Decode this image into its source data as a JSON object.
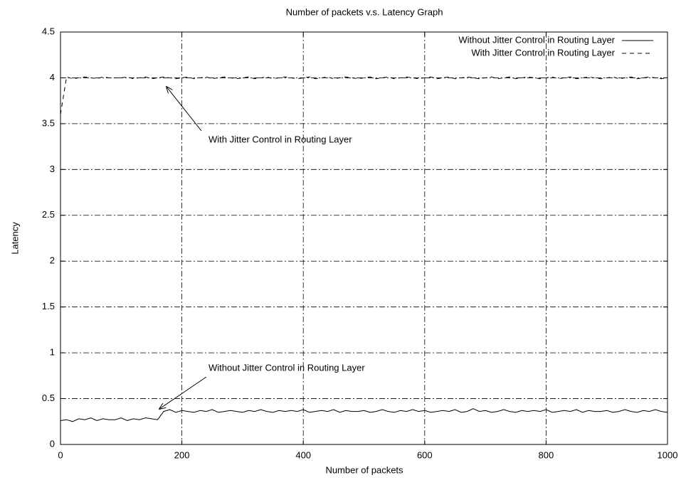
{
  "chart_data": {
    "type": "line",
    "title": "Number of packets v.s. Latency Graph",
    "x_label": "Number of packets",
    "y_label": "Latency",
    "xlim": [
      0,
      1000
    ],
    "ylim": [
      0,
      4.5
    ],
    "xticks": [
      0,
      200,
      400,
      600,
      800,
      1000
    ],
    "yticks": [
      0,
      0.5,
      1,
      1.5,
      2,
      2.5,
      3,
      3.5,
      4,
      4.5
    ],
    "grid": true,
    "legend": "top-right",
    "x": [
      0,
      10,
      20,
      30,
      40,
      50,
      60,
      70,
      80,
      90,
      100,
      110,
      120,
      130,
      140,
      150,
      160,
      170,
      180,
      190,
      200,
      210,
      220,
      230,
      240,
      250,
      260,
      270,
      280,
      290,
      300,
      310,
      320,
      330,
      340,
      350,
      360,
      370,
      380,
      390,
      400,
      410,
      420,
      430,
      440,
      450,
      460,
      470,
      480,
      490,
      500,
      510,
      520,
      530,
      540,
      550,
      560,
      570,
      580,
      590,
      600,
      610,
      620,
      630,
      640,
      650,
      660,
      670,
      680,
      690,
      700,
      710,
      720,
      730,
      740,
      750,
      760,
      770,
      780,
      790,
      800,
      810,
      820,
      830,
      840,
      850,
      860,
      870,
      880,
      890,
      900,
      910,
      920,
      930,
      940,
      950,
      960,
      970,
      980,
      990,
      1000
    ],
    "series": [
      {
        "name": "Without Jitter Control in Routing Layer",
        "color": "#000000",
        "style": "solid",
        "values": [
          0.26,
          0.27,
          0.25,
          0.28,
          0.27,
          0.29,
          0.26,
          0.28,
          0.27,
          0.27,
          0.29,
          0.26,
          0.28,
          0.27,
          0.29,
          0.28,
          0.27,
          0.36,
          0.38,
          0.35,
          0.37,
          0.36,
          0.35,
          0.37,
          0.36,
          0.38,
          0.35,
          0.36,
          0.37,
          0.36,
          0.35,
          0.37,
          0.36,
          0.38,
          0.36,
          0.35,
          0.37,
          0.36,
          0.37,
          0.36,
          0.38,
          0.35,
          0.36,
          0.37,
          0.36,
          0.38,
          0.35,
          0.37,
          0.36,
          0.36,
          0.37,
          0.35,
          0.36,
          0.38,
          0.36,
          0.35,
          0.37,
          0.36,
          0.38,
          0.36,
          0.37,
          0.35,
          0.36,
          0.37,
          0.36,
          0.38,
          0.35,
          0.36,
          0.39,
          0.36,
          0.37,
          0.35,
          0.36,
          0.38,
          0.36,
          0.35,
          0.37,
          0.36,
          0.37,
          0.36,
          0.38,
          0.35,
          0.36,
          0.37,
          0.36,
          0.38,
          0.35,
          0.37,
          0.36,
          0.36,
          0.37,
          0.35,
          0.36,
          0.38,
          0.36,
          0.35,
          0.37,
          0.36,
          0.38,
          0.36,
          0.35
        ]
      },
      {
        "name": "With Jitter Control in Routing Layer",
        "color": "#000000",
        "style": "dashed",
        "values": [
          3.6,
          4.01,
          3.99,
          4.0,
          4.01,
          4.0,
          3.99,
          4.01,
          4.0,
          4.0,
          4.0,
          4.01,
          3.99,
          4.0,
          4.01,
          3.99,
          4.0,
          4.01,
          4.0,
          3.99,
          4.0,
          4.01,
          3.99,
          4.0,
          4.01,
          3.99,
          4.0,
          4.01,
          4.0,
          3.99,
          4.0,
          4.01,
          3.99,
          4.0,
          4.01,
          3.99,
          4.0,
          4.01,
          4.0,
          3.99,
          4.0,
          4.01,
          3.99,
          4.0,
          4.01,
          3.99,
          4.0,
          4.01,
          4.0,
          3.99,
          4.0,
          4.01,
          3.99,
          4.0,
          4.01,
          3.99,
          4.0,
          4.01,
          4.0,
          3.99,
          4.0,
          4.01,
          3.99,
          4.0,
          4.01,
          3.99,
          4.0,
          4.01,
          4.0,
          3.99,
          4.0,
          4.01,
          3.99,
          4.0,
          4.01,
          3.99,
          4.0,
          4.01,
          4.0,
          3.99,
          4.0,
          4.01,
          3.99,
          4.0,
          4.01,
          3.99,
          4.0,
          4.01,
          4.0,
          3.99,
          4.0,
          4.01,
          3.99,
          4.0,
          4.01,
          3.99,
          4.0,
          4.01,
          4.0,
          3.99,
          4.0
        ]
      }
    ],
    "annotations": [
      "With Jitter Control in Routing Layer",
      "Without Jitter Control in Routing Layer"
    ]
  }
}
